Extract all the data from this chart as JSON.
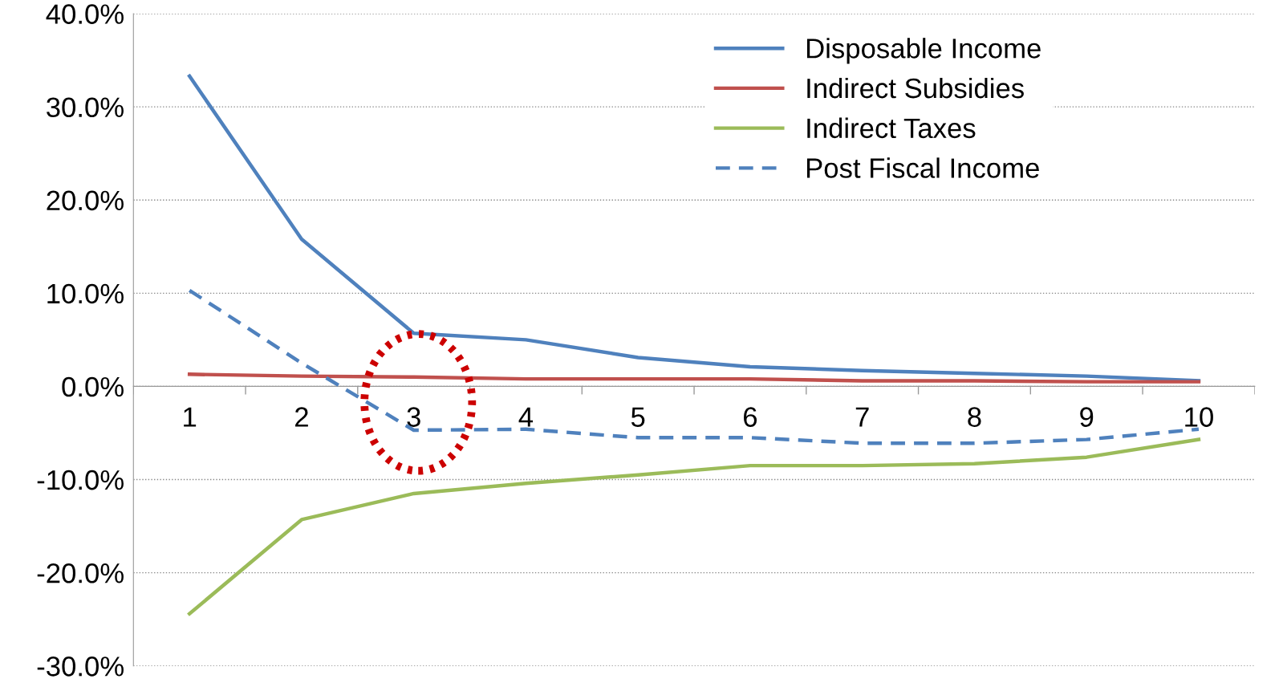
{
  "chart_data": {
    "type": "line",
    "categories": [
      "1",
      "2",
      "3",
      "4",
      "5",
      "6",
      "7",
      "8",
      "9",
      "10"
    ],
    "series": [
      {
        "name": "Disposable Income",
        "color": "#4f81bd",
        "line_style": "solid",
        "values": [
          33.3,
          15.8,
          5.7,
          5.0,
          3.1,
          2.1,
          1.7,
          1.4,
          1.1,
          0.6
        ]
      },
      {
        "name": "Indirect Subsidies",
        "color": "#c0504d",
        "line_style": "solid",
        "values": [
          1.3,
          1.1,
          1.0,
          0.8,
          0.8,
          0.8,
          0.6,
          0.6,
          0.5,
          0.5
        ]
      },
      {
        "name": "Indirect Taxes",
        "color": "#9bbb59",
        "line_style": "solid",
        "values": [
          -24.4,
          -14.3,
          -11.5,
          -10.4,
          -9.5,
          -8.5,
          -8.5,
          -8.3,
          -7.6,
          -5.7
        ]
      },
      {
        "name": "Post Fiscal Income",
        "color": "#4f81bd",
        "line_style": "dashed",
        "values": [
          10.3,
          2.5,
          -4.7,
          -4.6,
          -5.5,
          -5.5,
          -6.1,
          -6.1,
          -5.7,
          -4.6
        ]
      }
    ],
    "ylim": [
      -30,
      40
    ],
    "yticks": [
      {
        "value": -30,
        "label": "-30.0%"
      },
      {
        "value": -20,
        "label": "-20.0%"
      },
      {
        "value": -10,
        "label": "-10.0%"
      },
      {
        "value": 0,
        "label": "0.0%"
      },
      {
        "value": 10,
        "label": "10.0%"
      },
      {
        "value": 20,
        "label": "20.0%"
      },
      {
        "value": 30,
        "label": "30.0%"
      },
      {
        "value": 40,
        "label": "40.0%"
      }
    ],
    "grid": "y",
    "legend": "top right",
    "marker": "none"
  }
}
